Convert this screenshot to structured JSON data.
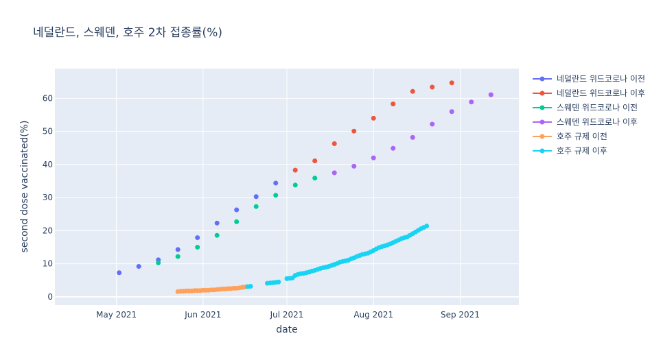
{
  "chart_data": {
    "type": "scatter",
    "title": "네덜란드, 스웨덴, 호주 2차 접종률(%)",
    "xlabel": "date",
    "ylabel": "second dose vaccinated(%)",
    "xlim": [
      "2021-04-09",
      "2021-09-22"
    ],
    "ylim": [
      -2.5,
      69
    ],
    "x_ticks": [
      {
        "date": "2021-05-01",
        "label": "May 2021"
      },
      {
        "date": "2021-06-01",
        "label": "Jun 2021"
      },
      {
        "date": "2021-07-01",
        "label": "Jul 2021"
      },
      {
        "date": "2021-08-01",
        "label": "Aug 2021"
      },
      {
        "date": "2021-09-01",
        "label": "Sep 2021"
      }
    ],
    "y_ticks": [
      0,
      10,
      20,
      30,
      40,
      50,
      60
    ],
    "grid": true,
    "legend_position": "top-right",
    "series": [
      {
        "name": "네덜란드 위드코로나 이전",
        "color": "#636efa",
        "x": [
          "2021-05-02",
          "2021-05-09",
          "2021-05-16",
          "2021-05-23",
          "2021-05-30",
          "2021-06-06",
          "2021-06-13",
          "2021-06-20",
          "2021-06-27"
        ],
        "y": [
          7.3,
          9.2,
          11.2,
          14.3,
          17.9,
          22.3,
          26.3,
          30.3,
          34.4
        ]
      },
      {
        "name": "네덜란드 위드코로나 이후",
        "color": "#ef553b",
        "x": [
          "2021-07-04",
          "2021-07-11",
          "2021-07-18",
          "2021-07-25",
          "2021-08-01",
          "2021-08-08",
          "2021-08-15",
          "2021-08-22",
          "2021-08-29"
        ],
        "y": [
          38.3,
          41.1,
          46.3,
          50.1,
          54.0,
          58.3,
          62.1,
          63.4,
          64.7
        ]
      },
      {
        "name": "스웨덴 위드코로나 이전",
        "color": "#00cc96",
        "x": [
          "2021-05-16",
          "2021-05-23",
          "2021-05-30",
          "2021-06-06",
          "2021-06-13",
          "2021-06-20",
          "2021-06-27",
          "2021-07-04",
          "2021-07-11"
        ],
        "y": [
          10.3,
          12.2,
          15.0,
          18.6,
          22.7,
          27.3,
          30.7,
          33.8,
          35.9
        ]
      },
      {
        "name": "스웨덴 위드코로나 이후",
        "color": "#ab63fa",
        "x": [
          "2021-07-18",
          "2021-07-25",
          "2021-08-01",
          "2021-08-08",
          "2021-08-15",
          "2021-08-22",
          "2021-08-29",
          "2021-09-05",
          "2021-09-12"
        ],
        "y": [
          37.5,
          39.5,
          42.0,
          44.9,
          48.2,
          52.2,
          56.0,
          58.9,
          61.1
        ]
      },
      {
        "name": "호주 규제 이전",
        "color": "#ffa15a",
        "x": [
          "2021-05-23",
          "2021-05-24",
          "2021-05-25",
          "2021-05-26",
          "2021-05-27",
          "2021-05-28",
          "2021-05-29",
          "2021-05-30",
          "2021-05-31",
          "2021-06-01",
          "2021-06-02",
          "2021-06-03",
          "2021-06-04",
          "2021-06-05",
          "2021-06-06",
          "2021-06-07",
          "2021-06-08",
          "2021-06-09",
          "2021-06-10",
          "2021-06-11",
          "2021-06-12",
          "2021-06-13",
          "2021-06-14",
          "2021-06-15",
          "2021-06-16"
        ],
        "y": [
          1.6,
          1.7,
          1.7,
          1.8,
          1.8,
          1.8,
          1.9,
          1.9,
          1.9,
          2.0,
          2.0,
          2.0,
          2.1,
          2.1,
          2.2,
          2.3,
          2.4,
          2.4,
          2.5,
          2.5,
          2.6,
          2.6,
          2.7,
          2.9,
          3.0
        ]
      },
      {
        "name": "호주 규제 이후",
        "color": "#19d3f3",
        "x": [
          "2021-06-17",
          "2021-06-18",
          "2021-06-24",
          "2021-06-25",
          "2021-06-26",
          "2021-06-27",
          "2021-06-28",
          "2021-07-01",
          "2021-07-02",
          "2021-07-03",
          "2021-07-04",
          "2021-07-05",
          "2021-07-06",
          "2021-07-07",
          "2021-07-08",
          "2021-07-09",
          "2021-07-10",
          "2021-07-11",
          "2021-07-12",
          "2021-07-13",
          "2021-07-14",
          "2021-07-15",
          "2021-07-16",
          "2021-07-17",
          "2021-07-18",
          "2021-07-19",
          "2021-07-20",
          "2021-07-21",
          "2021-07-22",
          "2021-07-23",
          "2021-07-24",
          "2021-07-25",
          "2021-07-26",
          "2021-07-27",
          "2021-07-28",
          "2021-07-29",
          "2021-07-30",
          "2021-07-31",
          "2021-08-01",
          "2021-08-02",
          "2021-08-03",
          "2021-08-04",
          "2021-08-05",
          "2021-08-06",
          "2021-08-07",
          "2021-08-08",
          "2021-08-09",
          "2021-08-10",
          "2021-08-11",
          "2021-08-12",
          "2021-08-13",
          "2021-08-14",
          "2021-08-15",
          "2021-08-16",
          "2021-08-17",
          "2021-08-18",
          "2021-08-19",
          "2021-08-20"
        ],
        "y": [
          3.1,
          3.2,
          4.1,
          4.2,
          4.3,
          4.4,
          4.5,
          5.5,
          5.6,
          5.7,
          6.5,
          6.8,
          7.0,
          7.1,
          7.3,
          7.5,
          7.8,
          8.0,
          8.3,
          8.6,
          8.8,
          9.0,
          9.2,
          9.5,
          9.8,
          10.1,
          10.5,
          10.7,
          10.9,
          11.1,
          11.5,
          11.8,
          12.2,
          12.5,
          12.8,
          13.0,
          13.2,
          13.6,
          14.0,
          14.5,
          14.9,
          15.2,
          15.4,
          15.7,
          16.0,
          16.4,
          16.8,
          17.2,
          17.6,
          17.9,
          18.1,
          18.6,
          19.1,
          19.6,
          20.1,
          20.6,
          21.0,
          21.4
        ]
      }
    ]
  }
}
